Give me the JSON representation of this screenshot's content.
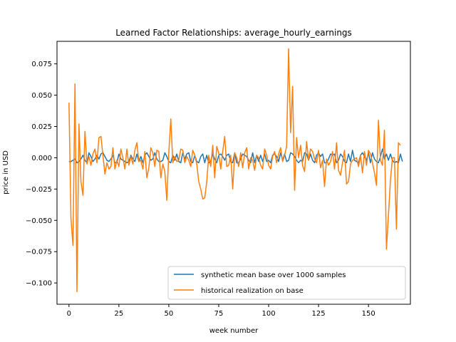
{
  "chart_data": {
    "type": "line",
    "title": "Learned Factor Relationships: average_hourly_earnings",
    "xlabel": "week number",
    "ylabel": "price in USD",
    "xlim": [
      -6,
      171
    ],
    "ylim": [
      -0.117,
      0.093
    ],
    "xticks": [
      0,
      25,
      50,
      75,
      100,
      125,
      150
    ],
    "yticks": [
      -0.1,
      -0.075,
      -0.05,
      -0.025,
      0.0,
      0.025,
      0.05,
      0.075
    ],
    "ytick_labels": [
      "−0.100",
      "−0.075",
      "−0.050",
      "−0.025",
      "0.000",
      "0.025",
      "0.050",
      "0.075"
    ],
    "grid": false,
    "legend_position": "lower right",
    "series": [
      {
        "name": "synthetic mean base over 1000 samples",
        "color": "#1f77b4",
        "x_start": 0,
        "values": [
          -0.003,
          -0.003,
          -0.002,
          -0.001,
          -0.004,
          -0.003,
          -0.001,
          0.002,
          -0.002,
          -0.004,
          0.004,
          0.001,
          -0.003,
          -0.001,
          0.002,
          -0.001,
          0.003,
          0.004,
          0.001,
          -0.002,
          -0.003,
          -0.001,
          0.002,
          -0.004,
          -0.004,
          0.003,
          -0.001,
          -0.002,
          -0.003,
          -0.004,
          -0.003,
          0.002,
          -0.001,
          -0.003,
          0.003,
          -0.003,
          0.001,
          -0.004,
          0.002,
          0.004,
          0.001,
          -0.002,
          -0.001,
          0.004,
          -0.001,
          -0.003,
          -0.003,
          -0.002,
          0.004,
          0.001,
          -0.003,
          -0.004,
          0.002,
          -0.002,
          0.003,
          -0.003,
          -0.004,
          0.004,
          -0.001,
          0.003,
          0.004,
          -0.003,
          -0.004,
          0.002,
          -0.003,
          -0.004,
          0.001,
          0.003,
          -0.004,
          0.002,
          -0.004,
          -0.003,
          0.003,
          -0.001,
          -0.004,
          0.002,
          0.003,
          0.001,
          -0.002,
          0.002,
          0.003,
          -0.003,
          -0.004,
          0.004,
          -0.004,
          -0.004,
          -0.001,
          0.003,
          0.002,
          0.001,
          -0.002,
          -0.004,
          0.004,
          -0.004,
          0.002,
          -0.003,
          0.002,
          -0.003,
          0.003,
          -0.003,
          -0.002,
          -0.004,
          0.002,
          0.003,
          0.001,
          -0.003,
          0.004,
          -0.002,
          0.003,
          -0.003,
          -0.002,
          0.004,
          0.003,
          0.001,
          -0.002,
          -0.004,
          -0.002,
          -0.003,
          0.004,
          0.003,
          -0.002,
          0.003,
          -0.002,
          -0.004,
          0.002,
          0.004,
          0.001,
          0.003,
          -0.004,
          -0.004,
          -0.001,
          0.003,
          0.002,
          0.003,
          -0.004,
          -0.002,
          0.003,
          0.001,
          -0.003,
          -0.004,
          0.003,
          -0.003,
          0.006,
          -0.002,
          -0.003,
          -0.004,
          0.002,
          0.004,
          0.001,
          -0.002,
          0.004,
          -0.004,
          0.004,
          -0.001,
          -0.003,
          -0.004,
          0.001,
          0.007,
          -0.001,
          0.003,
          -0.002,
          0.003,
          -0.002,
          -0.004,
          -0.003,
          -0.004,
          0.003,
          -0.003
        ]
      },
      {
        "name": "historical realization on base",
        "color": "#ff7f0e",
        "x_start": 0,
        "values": [
          0.044,
          -0.049,
          -0.07,
          0.059,
          -0.107,
          0.027,
          -0.019,
          -0.03,
          0.021,
          -0.005,
          0.001,
          -0.006,
          0.003,
          0.007,
          -0.004,
          0.016,
          0.017,
          0.002,
          -0.013,
          -0.004,
          -0.009,
          -0.007,
          0.008,
          -0.009,
          -0.002,
          -0.007,
          0.007,
          0.0,
          -0.009,
          0.007,
          -0.006,
          0.001,
          -0.005,
          0.006,
          0.012,
          -0.003,
          -0.002,
          -0.009,
          0.005,
          -0.016,
          -0.008,
          0.008,
          0.004,
          -0.007,
          0.006,
          0.005,
          -0.016,
          -0.005,
          -0.011,
          -0.034,
          0.004,
          0.031,
          -0.004,
          0.001,
          -0.003,
          -0.002,
          0.007,
          0.006,
          -0.004,
          0.001,
          -0.002,
          -0.007,
          0.006,
          0.002,
          -0.005,
          -0.019,
          -0.025,
          -0.033,
          -0.032,
          -0.019,
          0.002,
          -0.007,
          0.01,
          -0.016,
          0.009,
          0.004,
          -0.009,
          0.005,
          0.017,
          -0.007,
          -0.006,
          0.002,
          -0.025,
          0.004,
          0.0,
          -0.007,
          0.004,
          -0.008,
          0.004,
          0.008,
          -0.009,
          0.0,
          -0.002,
          -0.01,
          0.002,
          0.0,
          -0.006,
          -0.009,
          0.007,
          0.002,
          -0.006,
          -0.009,
          0.001,
          0.005,
          -0.004,
          0.003,
          0.008,
          -0.003,
          0.002,
          0.009,
          0.087,
          0.02,
          0.057,
          -0.026,
          0.016,
          0.0,
          0.01,
          -0.006,
          -0.011,
          0.013,
          -0.002,
          0.007,
          0.005,
          -0.001,
          -0.004,
          0.006,
          -0.008,
          -0.002,
          -0.023,
          -0.001,
          -0.006,
          -0.003,
          0.005,
          -0.009,
          0.012,
          -0.01,
          -0.014,
          -0.004,
          0.006,
          -0.021,
          -0.019,
          -0.005,
          -0.002,
          -0.001,
          0.0,
          -0.007,
          0.002,
          -0.012,
          0.005,
          -0.006,
          0.006,
          0.003,
          -0.004,
          -0.012,
          -0.022,
          0.03,
          -0.002,
          -0.006,
          0.022,
          -0.073,
          -0.046,
          -0.018,
          0.0,
          0.0,
          -0.057,
          0.012,
          0.01
        ]
      }
    ]
  }
}
